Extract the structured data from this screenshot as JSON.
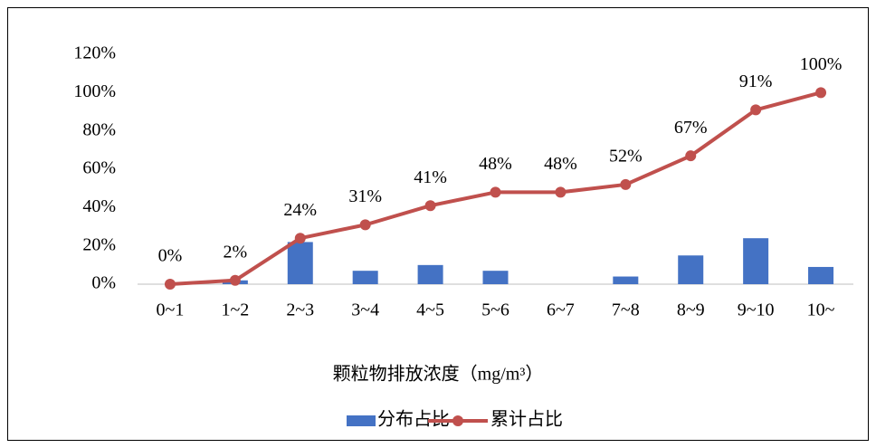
{
  "chart_data": {
    "type": "combo",
    "x_label": "颗粒物排放浓度（mg/m³）",
    "categories": [
      "0~1",
      "1~2",
      "2~3",
      "3~4",
      "4~5",
      "5~6",
      "6~7",
      "7~8",
      "8~9",
      "9~10",
      "10~"
    ],
    "series": [
      {
        "name": "分布占比",
        "type": "bar",
        "color": "#4472c4",
        "values": [
          0,
          2,
          22,
          7,
          10,
          7,
          0,
          4,
          15,
          24,
          9
        ]
      },
      {
        "name": "累计占比",
        "type": "line",
        "color": "#c0504d",
        "values": [
          0,
          2,
          24,
          31,
          41,
          48,
          48,
          52,
          67,
          91,
          100
        ],
        "value_labels": [
          "0%",
          "2%",
          "24%",
          "31%",
          "41%",
          "48%",
          "48%",
          "52%",
          "67%",
          "91%",
          "100%"
        ]
      }
    ],
    "ylim": [
      0,
      120
    ],
    "yticks": [
      {
        "value": 0,
        "label": "0%"
      },
      {
        "value": 20,
        "label": "20%"
      },
      {
        "value": 40,
        "label": "40%"
      },
      {
        "value": 60,
        "label": "60%"
      },
      {
        "value": 80,
        "label": "80%"
      },
      {
        "value": 100,
        "label": "100%"
      },
      {
        "value": 120,
        "label": "120%"
      }
    ],
    "grid": false,
    "legend": "bottom"
  }
}
